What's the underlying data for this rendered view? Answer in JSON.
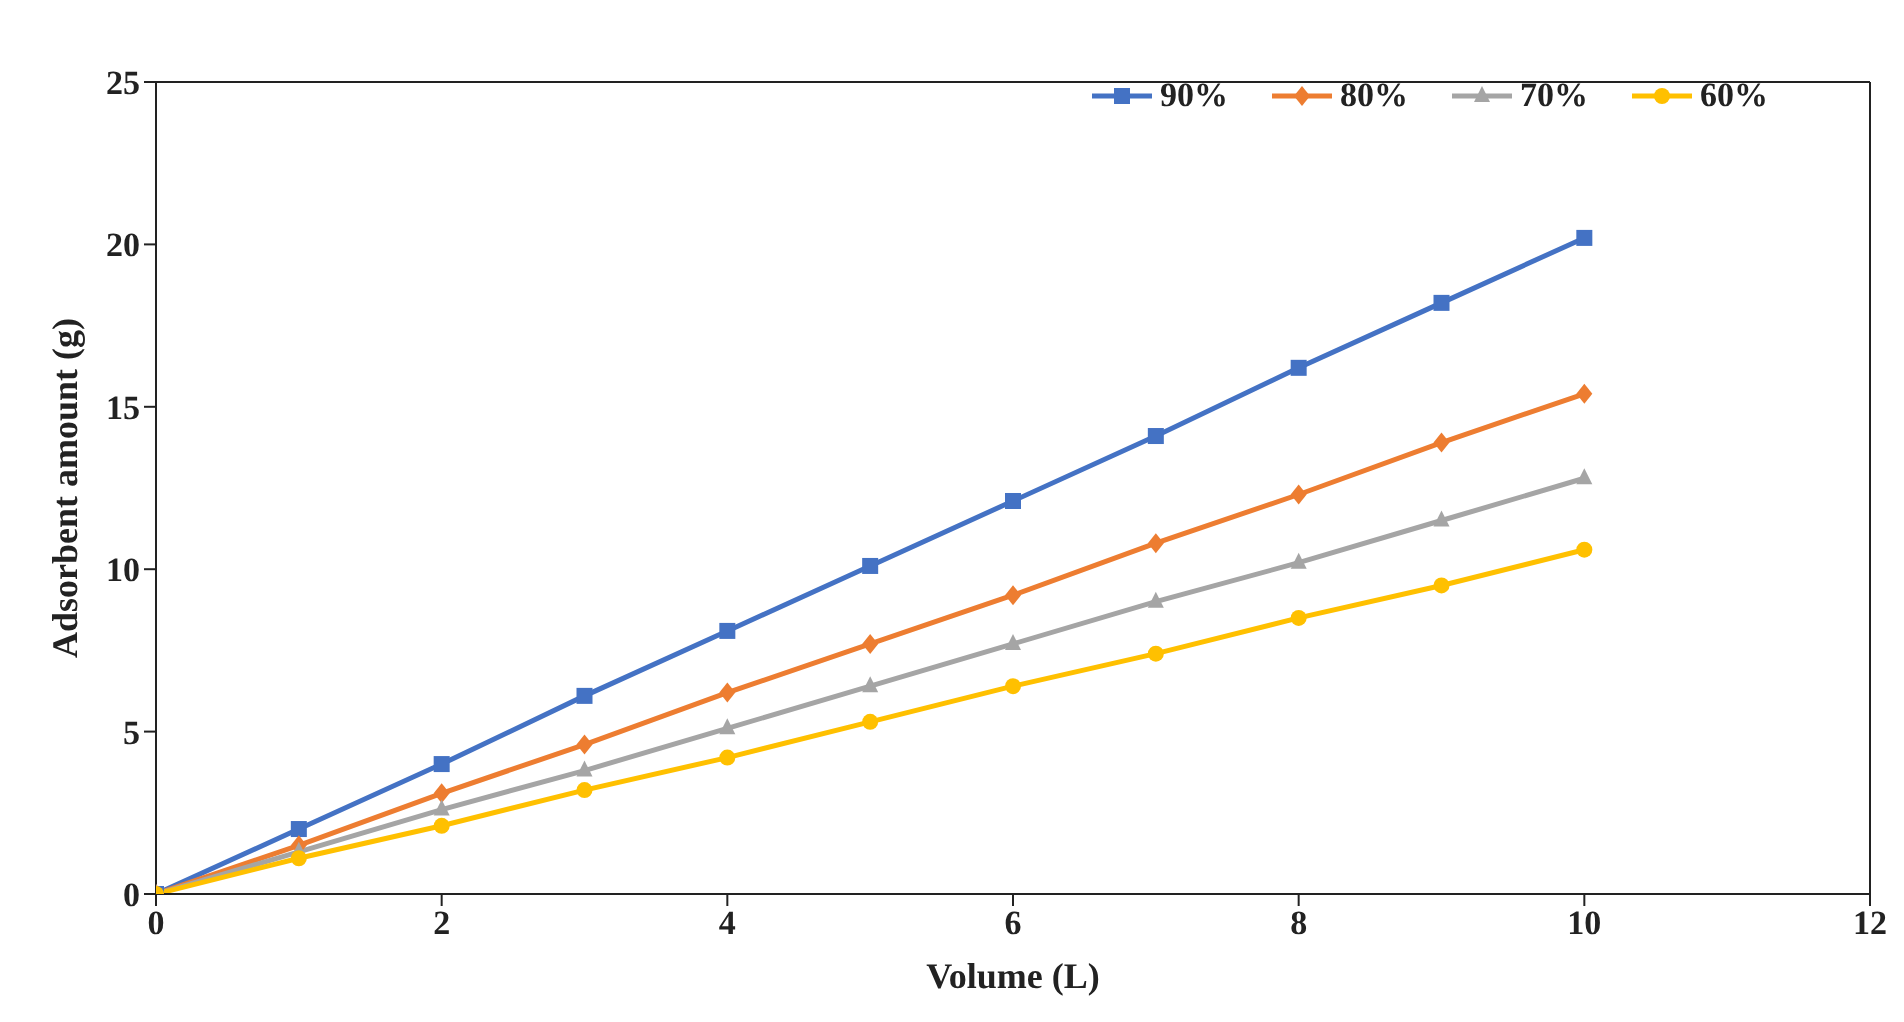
{
  "chart_data": {
    "type": "line",
    "xlabel": "Volume (L)",
    "ylabel": "Adsorbent amount (g)",
    "x": [
      0,
      1,
      2,
      3,
      4,
      5,
      6,
      7,
      8,
      9,
      10
    ],
    "series": [
      {
        "name": "90%",
        "color": "#4472c4",
        "marker": "square",
        "values": [
          0,
          2.0,
          4.0,
          6.1,
          8.1,
          10.1,
          12.1,
          14.1,
          16.2,
          18.2,
          20.2
        ]
      },
      {
        "name": "80%",
        "color": "#ed7d31",
        "marker": "diamond",
        "values": [
          0,
          1.5,
          3.1,
          4.6,
          6.2,
          7.7,
          9.2,
          10.8,
          12.3,
          13.9,
          15.4
        ]
      },
      {
        "name": "70%",
        "color": "#a5a5a5",
        "marker": "triangle",
        "values": [
          0,
          1.3,
          2.6,
          3.8,
          5.1,
          6.4,
          7.7,
          9.0,
          10.2,
          11.5,
          12.8
        ]
      },
      {
        "name": "60%",
        "color": "#ffc000",
        "marker": "circle",
        "values": [
          0,
          1.1,
          2.1,
          3.2,
          4.2,
          5.3,
          6.4,
          7.4,
          8.5,
          9.5,
          10.6
        ]
      }
    ],
    "xlim": [
      0,
      12
    ],
    "xticks": [
      0,
      2,
      4,
      6,
      8,
      10,
      12
    ],
    "ylim": [
      0,
      25
    ],
    "yticks": [
      0,
      5,
      10,
      15,
      20,
      25
    ],
    "grid": false,
    "legend": "top right"
  }
}
